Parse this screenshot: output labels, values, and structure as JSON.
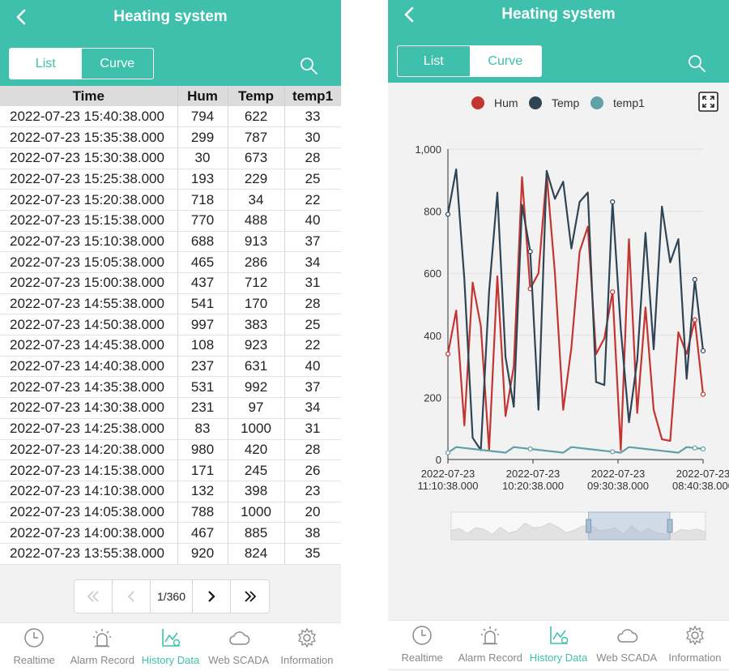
{
  "app": {
    "title": "Heating system"
  },
  "toggle": {
    "list": "List",
    "curve": "Curve"
  },
  "table": {
    "columns": [
      "Time",
      "Hum",
      "Temp",
      "temp1"
    ],
    "rows": [
      [
        "2022-07-23 15:40:38.000",
        "794",
        "622",
        "33"
      ],
      [
        "2022-07-23 15:35:38.000",
        "299",
        "787",
        "30"
      ],
      [
        "2022-07-23 15:30:38.000",
        "30",
        "673",
        "28"
      ],
      [
        "2022-07-23 15:25:38.000",
        "193",
        "229",
        "25"
      ],
      [
        "2022-07-23 15:20:38.000",
        "718",
        "34",
        "22"
      ],
      [
        "2022-07-23 15:15:38.000",
        "770",
        "488",
        "40"
      ],
      [
        "2022-07-23 15:10:38.000",
        "688",
        "913",
        "37"
      ],
      [
        "2022-07-23 15:05:38.000",
        "465",
        "286",
        "34"
      ],
      [
        "2022-07-23 15:00:38.000",
        "437",
        "712",
        "31"
      ],
      [
        "2022-07-23 14:55:38.000",
        "541",
        "170",
        "28"
      ],
      [
        "2022-07-23 14:50:38.000",
        "997",
        "383",
        "25"
      ],
      [
        "2022-07-23 14:45:38.000",
        "108",
        "923",
        "22"
      ],
      [
        "2022-07-23 14:40:38.000",
        "237",
        "631",
        "40"
      ],
      [
        "2022-07-23 14:35:38.000",
        "531",
        "992",
        "37"
      ],
      [
        "2022-07-23 14:30:38.000",
        "231",
        "97",
        "34"
      ],
      [
        "2022-07-23 14:25:38.000",
        "83",
        "1000",
        "31"
      ],
      [
        "2022-07-23 14:20:38.000",
        "980",
        "420",
        "28"
      ],
      [
        "2022-07-23 14:15:38.000",
        "171",
        "245",
        "26"
      ],
      [
        "2022-07-23 14:10:38.000",
        "132",
        "398",
        "23"
      ],
      [
        "2022-07-23 14:05:38.000",
        "788",
        "1000",
        "20"
      ],
      [
        "2022-07-23 14:00:38.000",
        "467",
        "885",
        "38"
      ],
      [
        "2022-07-23 13:55:38.000",
        "920",
        "824",
        "35"
      ]
    ]
  },
  "pager": {
    "page": "1/360"
  },
  "tabs": [
    {
      "label": "Realtime",
      "icon": "clock-icon",
      "active": false
    },
    {
      "label": "Alarm Record",
      "icon": "alarm-icon",
      "active": false
    },
    {
      "label": "History Data",
      "icon": "history-chart-icon",
      "active": true
    },
    {
      "label": "Web SCADA",
      "icon": "cloud-icon",
      "active": false
    },
    {
      "label": "Information",
      "icon": "gear-icon",
      "active": false
    }
  ],
  "colors": {
    "accent": "#3fc0ad",
    "hum": "#c23531",
    "temp": "#2f4554",
    "temp1": "#61a0a8"
  },
  "chart_data": {
    "type": "line",
    "legend": [
      "Hum",
      "Temp",
      "temp1"
    ],
    "legend_position": "top",
    "ylim": [
      0,
      1000
    ],
    "y_ticks": [
      "0",
      "200",
      "400",
      "600",
      "800",
      "1,000"
    ],
    "x_ticks": [
      [
        "2022-07-23",
        "11:10:38.000"
      ],
      [
        "2022-07-23",
        "10:20:38.000"
      ],
      [
        "2022-07-23",
        "09:30:38.000"
      ],
      [
        "2022-07-23",
        "08:40:38.000"
      ]
    ],
    "grid": true,
    "series": [
      {
        "name": "Hum",
        "values": [
          340,
          480,
          110,
          570,
          430,
          30,
          590,
          140,
          300,
          910,
          550,
          600,
          920,
          600,
          160,
          360,
          670,
          750,
          340,
          390,
          540,
          30,
          710,
          150,
          490,
          160,
          65,
          60,
          410,
          340,
          450,
          210
        ]
      },
      {
        "name": "Temp",
        "values": [
          790,
          935,
          580,
          70,
          30,
          540,
          860,
          330,
          170,
          820,
          670,
          160,
          930,
          840,
          895,
          680,
          830,
          860,
          250,
          240,
          830,
          420,
          120,
          320,
          730,
          355,
          815,
          635,
          710,
          260,
          580,
          350
        ]
      },
      {
        "name": "temp1",
        "values": [
          22,
          40,
          37,
          34,
          31,
          28,
          25,
          22,
          40,
          37,
          34,
          31,
          28,
          25,
          22,
          40,
          37,
          34,
          31,
          28,
          25,
          22,
          40,
          37,
          34,
          31,
          28,
          25,
          22,
          40,
          37,
          34
        ]
      }
    ]
  }
}
